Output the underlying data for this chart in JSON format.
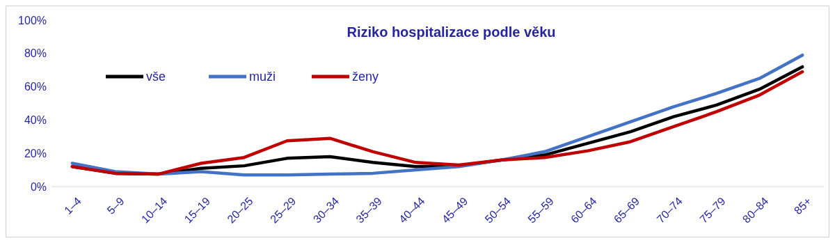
{
  "chart_data": {
    "type": "line",
    "title": "Riziko hospitalizace  podle věku",
    "categories": [
      "1–4",
      "5–9",
      "10–14",
      "15–19",
      "20–25",
      "25–29",
      "30–34",
      "35–39",
      "40–44",
      "45–49",
      "50–54",
      "55–59",
      "60–64",
      "65–69",
      "70–74",
      "75–79",
      "80–84",
      "85+"
    ],
    "series": [
      {
        "name": "vše",
        "color": "#000000",
        "values": [
          12,
          8,
          7.5,
          11,
          12.5,
          17,
          18,
          14.5,
          12,
          12.5,
          16,
          19,
          26,
          33,
          42,
          49,
          58.5,
          72
        ]
      },
      {
        "name": "muži",
        "color": "#4472c4",
        "values": [
          14,
          9,
          7.5,
          9,
          7,
          7,
          7.5,
          8,
          10,
          12,
          16,
          21,
          30,
          39,
          48,
          56,
          65,
          79
        ]
      },
      {
        "name": "ženy",
        "color": "#c00000",
        "values": [
          12,
          8,
          7.5,
          14,
          17.5,
          27.5,
          29,
          21,
          14.5,
          13,
          16,
          17.5,
          21.5,
          27,
          36,
          45,
          55,
          69
        ]
      }
    ],
    "ylim": [
      0,
      100
    ],
    "yticks": [
      {
        "value": 0,
        "label": "0%"
      },
      {
        "value": 20,
        "label": "20%"
      },
      {
        "value": 40,
        "label": "40%"
      },
      {
        "value": 60,
        "label": "60%"
      },
      {
        "value": 80,
        "label": "80%"
      },
      {
        "value": 100,
        "label": "100%"
      }
    ],
    "legend": "top left",
    "line_style": "solid",
    "marker": "none"
  }
}
